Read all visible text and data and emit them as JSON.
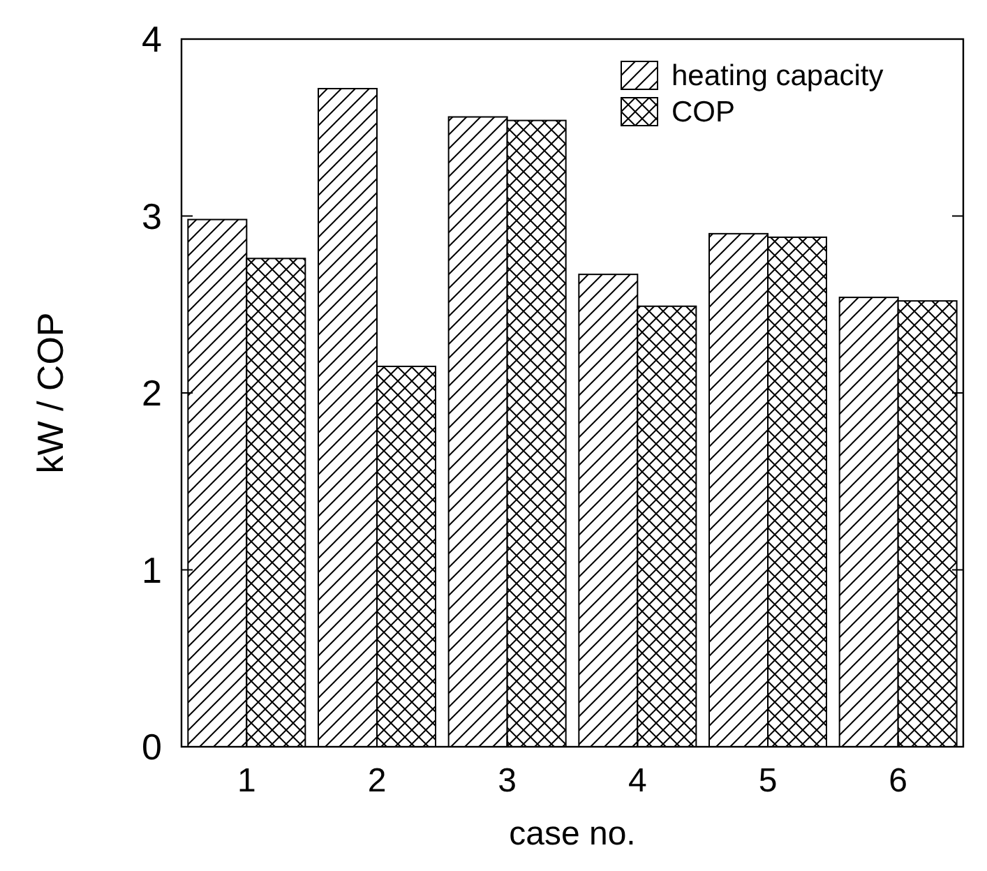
{
  "chart_data": {
    "type": "bar",
    "xlabel": "case no.",
    "ylabel": "kW / COP",
    "categories": [
      "1",
      "2",
      "3",
      "4",
      "5",
      "6"
    ],
    "series": [
      {
        "name": "heating capacity",
        "color": "#000000",
        "values": [
          2.98,
          3.72,
          3.56,
          2.67,
          2.9,
          2.54
        ]
      },
      {
        "name": "COP",
        "color": "#000000",
        "values": [
          2.76,
          2.15,
          3.54,
          2.49,
          2.88,
          2.52
        ]
      }
    ],
    "ylim": [
      0,
      4
    ],
    "yticks": [
      0,
      1,
      2,
      3,
      4
    ],
    "grid": false,
    "legend": "top right"
  }
}
